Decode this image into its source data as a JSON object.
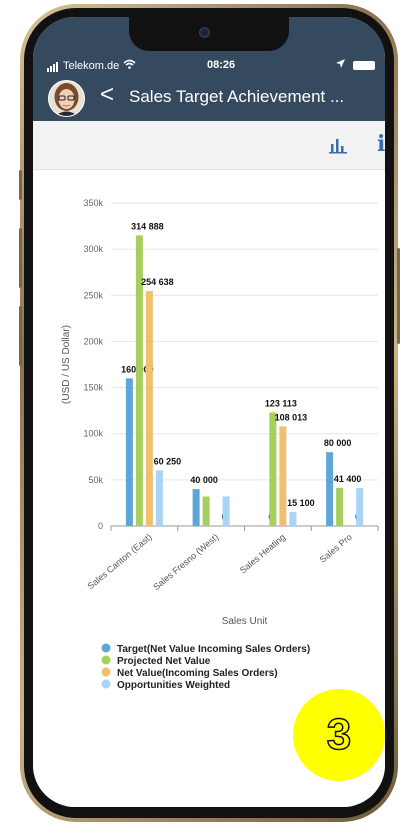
{
  "status_bar": {
    "carrier": "Telekom.de",
    "time": "08:26"
  },
  "header": {
    "back_glyph": "<",
    "title": "Sales Target Achievement ..."
  },
  "toolbar": {
    "chart_icon": "bar-chart-icon",
    "info_icon": "info-icon",
    "info_glyph": "i"
  },
  "badge": {
    "number": "3",
    "color": "#ffff00"
  },
  "colors": {
    "header": "#354a5f",
    "target": "#5ea6d8",
    "projected": "#a8cf5e",
    "net": "#f0c070",
    "opportunities": "#a8d4f5"
  },
  "chart_data": {
    "type": "bar",
    "ylabel": "(USD / US Dollar)",
    "xlabel": "Sales Unit",
    "ylim": [
      0,
      350000
    ],
    "yticks": [
      "0",
      "50k",
      "100k",
      "150k",
      "200k",
      "250k",
      "300k",
      "350k"
    ],
    "ytick_values": [
      0,
      50000,
      100000,
      150000,
      200000,
      250000,
      300000,
      350000
    ],
    "categories": [
      "Sales Canton (East)",
      "Sales Fresno (West)",
      "Sales Heating",
      "Sales Pro"
    ],
    "series": [
      {
        "name": "Target(Net Value Incoming Sales Orders)",
        "color": "#5ea6d8",
        "values": [
          160000,
          40000,
          0,
          80000
        ],
        "labels": [
          "160 000",
          "40 000",
          "0",
          "80 000"
        ]
      },
      {
        "name": "Projected Net Value",
        "color": "#a8cf5e",
        "values": [
          314888,
          32000,
          123113,
          41400
        ],
        "labels": [
          "314 888",
          "",
          "123 113",
          "41 400"
        ]
      },
      {
        "name": "Net Value(Incoming Sales Orders)",
        "color": "#f0c070",
        "values": [
          254638,
          0,
          108013,
          0
        ],
        "labels": [
          "254 638",
          "0",
          "108 013",
          "0"
        ]
      },
      {
        "name": "Opportunities Weighted",
        "color": "#a8d4f5",
        "values": [
          60250,
          32000,
          15100,
          41000
        ],
        "labels": [
          "60 250",
          "",
          "15 100",
          ""
        ]
      }
    ],
    "legend_position": "bottom"
  }
}
